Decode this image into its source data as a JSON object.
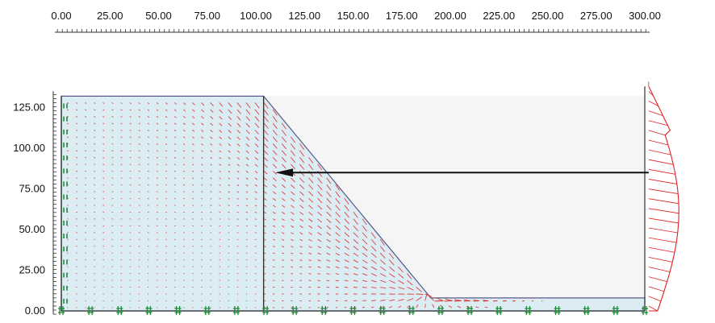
{
  "x_ruler": {
    "ticks": [
      "0.00",
      "25.00",
      "50.00",
      "75.00",
      "100.00",
      "125.00",
      "150.00",
      "175.00",
      "200.00",
      "225.00",
      "250.00",
      "275.00",
      "300.00"
    ],
    "values": [
      0,
      25,
      50,
      75,
      100,
      125,
      150,
      175,
      200,
      225,
      250,
      275,
      300
    ]
  },
  "y_ruler": {
    "ticks": [
      "125.00",
      "100.00",
      "75.00",
      "50.00",
      "25.00",
      "0.00"
    ],
    "values": [
      125,
      100,
      75,
      50,
      25,
      0
    ]
  },
  "model": {
    "soil_fill": "#dcecf3",
    "slope_edge_color": "#5a5a8a",
    "vector_color": "#e02020",
    "support_color": "#1f8a3a",
    "ground_surface": [
      [
        0,
        132
      ],
      [
        104,
        132
      ],
      [
        190,
        8
      ],
      [
        300,
        8
      ]
    ],
    "right_boundary_x": 300,
    "internal_boundary_x": 104,
    "wall_top": 132
  },
  "load_arrow": {
    "from_x": 302,
    "to_x": 110,
    "y": 85,
    "color": "#111111"
  },
  "load_diagram": {
    "base_x": 302,
    "peak_offset": 34,
    "color": "#e02020"
  }
}
